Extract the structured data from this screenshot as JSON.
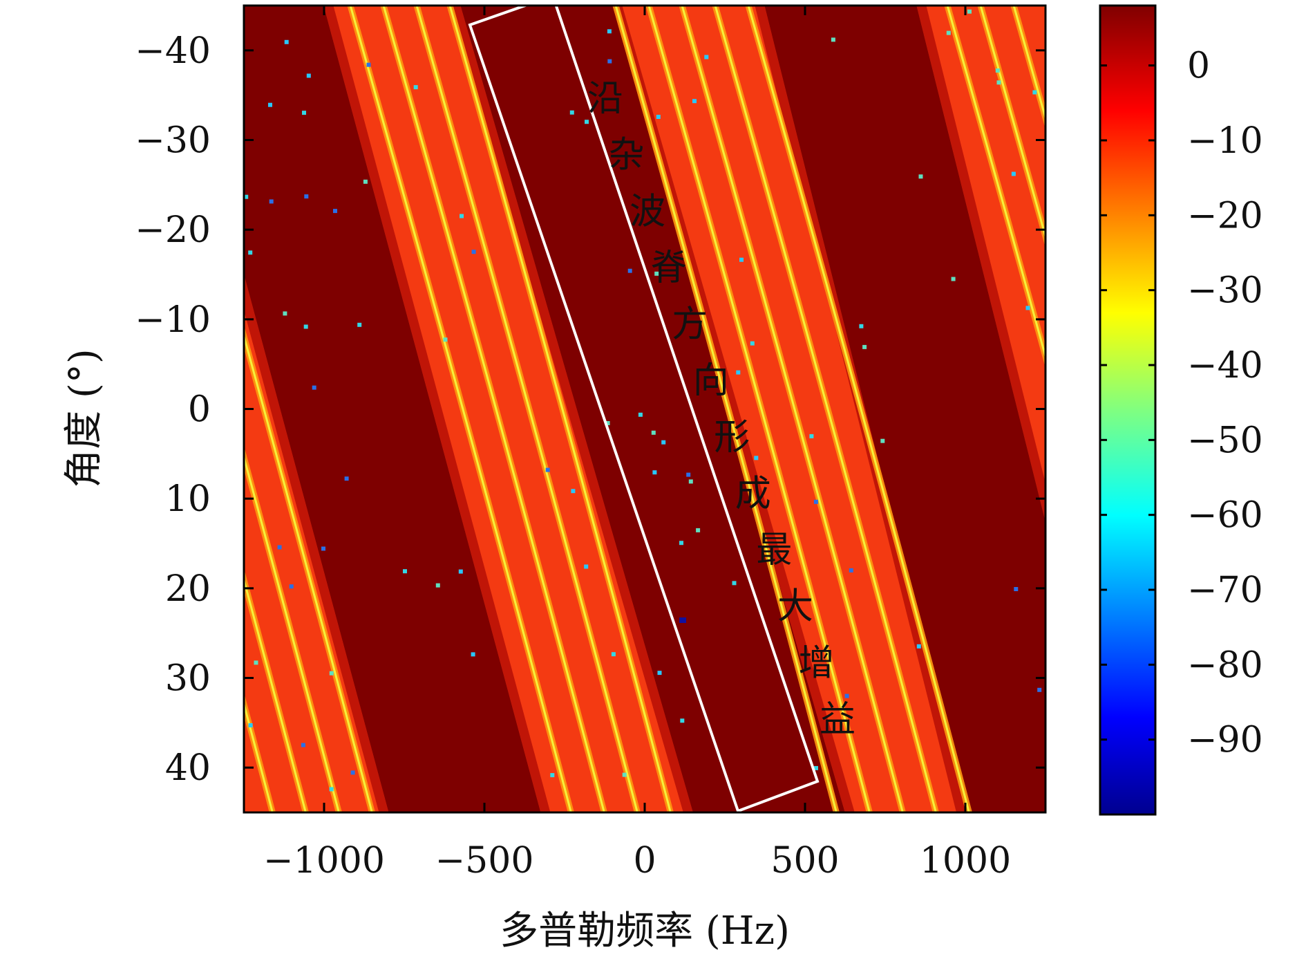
{
  "chart_data": {
    "type": "heatmap",
    "title": "",
    "xlabel": "多普勒频率 (Hz)",
    "ylabel": "角度 (°)",
    "xlim": [
      -1250,
      1250
    ],
    "ylim": [
      -45,
      45
    ],
    "y_reversed": true,
    "x_ticks": [
      -1000,
      -500,
      0,
      500,
      1000
    ],
    "x_tick_labels": [
      "−1000",
      "−500",
      "0",
      "500",
      "1000"
    ],
    "y_ticks": [
      -40,
      -30,
      -20,
      -10,
      0,
      10,
      20,
      30,
      40
    ],
    "y_tick_labels": [
      "−40",
      "−30",
      "−20",
      "−10",
      "0",
      "10",
      "20",
      "30",
      "40"
    ],
    "colorbar": {
      "range": [
        -100,
        8
      ],
      "ticks": [
        0,
        -10,
        -20,
        -30,
        -40,
        -50,
        -60,
        -70,
        -80,
        -90
      ],
      "tick_labels": [
        "0",
        "−10",
        "−20",
        "−30",
        "−40",
        "−50",
        "−60",
        "−70",
        "−80",
        "−90"
      ],
      "colormap": "jet"
    },
    "ridges": [
      {
        "x_at_top": -1250,
        "x_at_bottom": -550
      },
      {
        "x_at_top": -350,
        "x_at_bottom": 400
      },
      {
        "x_at_top": 600,
        "x_at_bottom": 1250
      }
    ],
    "annotation": {
      "text": "沿杂波脊方向形成最大增益",
      "box_color": "#ffffff"
    }
  }
}
